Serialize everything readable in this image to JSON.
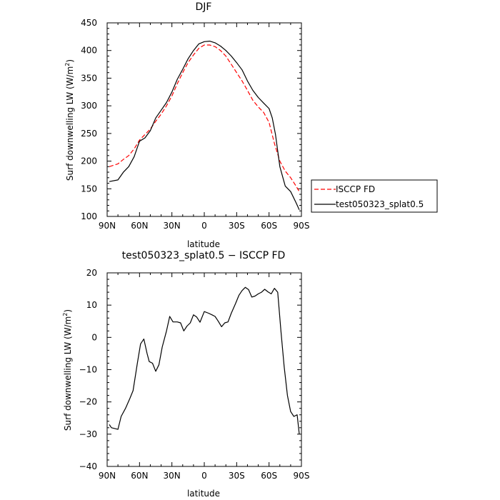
{
  "chart_data": [
    {
      "type": "line",
      "title": "DJF",
      "xlabel": "latitude",
      "ylabel_main": "Surf downwelling LW (W/m",
      "ylabel_sup": "2",
      "ylabel_end": ")",
      "xticks": [
        -90,
        -60,
        -30,
        0,
        30,
        60,
        90
      ],
      "xtick_labels": [
        "90N",
        "60N",
        "30N",
        "0",
        "30S",
        "60S",
        "90S"
      ],
      "xlim": [
        -90,
        90
      ],
      "ylim": [
        100,
        450
      ],
      "yticks": [
        100,
        150,
        200,
        250,
        300,
        350,
        400,
        450
      ],
      "grid": false,
      "legend": "right-outside",
      "series": [
        {
          "name": "ISCCP FD",
          "color": "#ff0000",
          "dash": "dashed",
          "x": [
            -88,
            -80,
            -75,
            -70,
            -65,
            -60,
            -55,
            -50,
            -45,
            -40,
            -35,
            -30,
            -25,
            -20,
            -15,
            -10,
            -5,
            0,
            5,
            10,
            15,
            20,
            25,
            30,
            35,
            40,
            45,
            50,
            55,
            60,
            65,
            70,
            75,
            80,
            85,
            88
          ],
          "y": [
            190,
            195,
            203,
            210,
            222,
            238,
            248,
            258,
            272,
            285,
            300,
            318,
            340,
            360,
            378,
            392,
            404,
            410,
            410,
            407,
            400,
            390,
            375,
            360,
            345,
            328,
            310,
            298,
            288,
            270,
            232,
            200,
            182,
            170,
            155,
            145
          ]
        },
        {
          "name": "test050323_splat0.5",
          "color": "#000000",
          "dash": "solid",
          "x": [
            -88,
            -80,
            -75,
            -70,
            -65,
            -60,
            -55,
            -50,
            -45,
            -40,
            -35,
            -30,
            -25,
            -20,
            -15,
            -10,
            -5,
            0,
            5,
            10,
            15,
            20,
            25,
            30,
            35,
            40,
            45,
            50,
            55,
            60,
            63,
            66,
            70,
            75,
            80,
            85,
            88
          ],
          "y": [
            163,
            166,
            180,
            190,
            208,
            236,
            242,
            255,
            278,
            292,
            306,
            325,
            348,
            366,
            385,
            400,
            412,
            416,
            417,
            414,
            408,
            400,
            390,
            378,
            365,
            345,
            328,
            315,
            305,
            295,
            278,
            248,
            190,
            155,
            145,
            125,
            112
          ]
        }
      ]
    },
    {
      "type": "line",
      "title": "test050323_splat0.5 − ISCCP FD",
      "xlabel": "latitude",
      "ylabel_main": "Surf downwelling LW (W/m",
      "ylabel_sup": "2",
      "ylabel_end": ")",
      "xticks": [
        -90,
        -60,
        -30,
        0,
        30,
        60,
        90
      ],
      "xtick_labels": [
        "90N",
        "60N",
        "30N",
        "0",
        "30S",
        "60S",
        "90S"
      ],
      "xlim": [
        -90,
        90
      ],
      "ylim": [
        -40,
        20
      ],
      "yticks": [
        -40,
        -30,
        -20,
        -10,
        0,
        10,
        20
      ],
      "ytick_labels": [
        "−40",
        "−30",
        "−20",
        "−10",
        "0",
        "10",
        "20"
      ],
      "grid": false,
      "series": [
        {
          "color": "#000000",
          "dash": "solid",
          "x": [
            -88,
            -86,
            -80,
            -77,
            -73,
            -69,
            -66,
            -62,
            -59,
            -56,
            -53,
            -51,
            -48,
            -45,
            -42,
            -39,
            -35,
            -32,
            -29,
            -25,
            -22,
            -19,
            -16,
            -13,
            -10,
            -7,
            -4,
            0,
            4,
            7,
            10,
            13,
            16,
            19,
            22,
            25,
            29,
            32,
            35,
            38,
            41,
            44,
            47,
            50,
            53,
            56,
            59,
            62,
            65,
            68,
            71,
            74,
            77,
            80,
            83,
            86,
            88
          ],
          "y": [
            -27,
            -28,
            -28.5,
            -24.5,
            -22,
            -19,
            -16.5,
            -8,
            -2,
            -0.5,
            -5,
            -7.5,
            -8,
            -10.5,
            -8.5,
            -3,
            2,
            6.5,
            4.8,
            4.8,
            4.5,
            2,
            3.5,
            4.5,
            7,
            6.3,
            4.7,
            8,
            7.5,
            7,
            6.5,
            5,
            3.3,
            4.5,
            4.8,
            7.5,
            10.5,
            13,
            14.5,
            15.5,
            14.8,
            12.5,
            12.8,
            13.5,
            14,
            14.9,
            14.1,
            13.5,
            15.2,
            14,
            2,
            -9,
            -18,
            -23,
            -24.5,
            -24,
            -30
          ]
        }
      ]
    }
  ]
}
